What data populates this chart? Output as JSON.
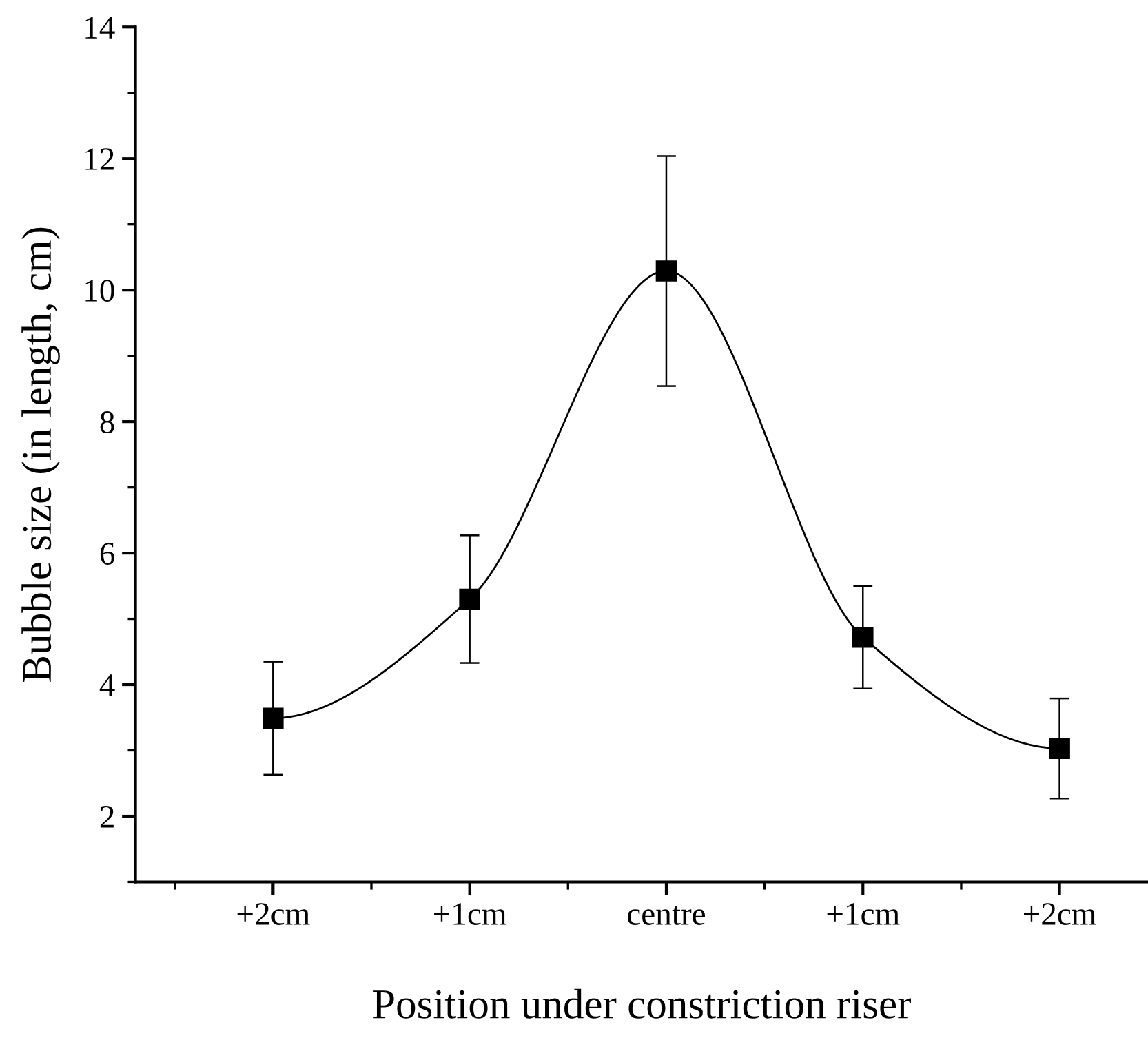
{
  "chart_data": {
    "type": "line",
    "xlabel": "Position under constriction riser",
    "ylabel": "Bubble size (in length, cm)",
    "categories": [
      "+2cm",
      "+1cm",
      "centre",
      "+1cm",
      "+2cm"
    ],
    "series": [
      {
        "color": "#000000",
        "values": [
          3.49,
          5.3,
          10.29,
          4.72,
          3.03
        ],
        "errors": [
          0.86,
          0.97,
          1.75,
          0.78,
          0.76
        ]
      }
    ],
    "ylim": [
      1,
      14
    ],
    "yticks": [
      2,
      4,
      6,
      8,
      10,
      12,
      14
    ],
    "marker": "square",
    "line_style": "solid",
    "grid": false,
    "legend": false
  }
}
